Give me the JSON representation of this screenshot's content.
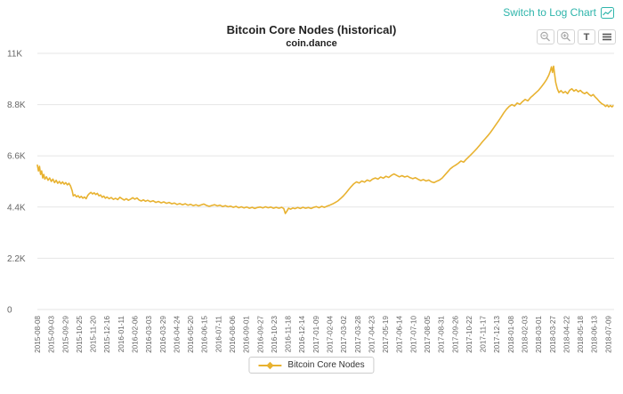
{
  "header": {
    "log_link_label": "Switch to Log Chart",
    "toolbar_buttons": [
      {
        "name": "zoom-out-icon",
        "title": "Zoom out"
      },
      {
        "name": "zoom-in-icon",
        "title": "Zoom in"
      },
      {
        "name": "text-annotation-icon",
        "title": "Text"
      },
      {
        "name": "menu-icon",
        "title": "Menu"
      }
    ]
  },
  "colors": {
    "accent": "#e8b230",
    "link": "#2eb5ab",
    "grid": "#e6e6e6",
    "axis_text": "#666666"
  },
  "chart_data": {
    "type": "line",
    "title": "Bitcoin Core Nodes (historical)",
    "subtitle": "coin.dance",
    "ylim": [
      0,
      11000
    ],
    "grid": "horizontal",
    "legend_position": "bottom",
    "y_ticks": [
      {
        "v": 0,
        "label": "0"
      },
      {
        "v": 2200,
        "label": "2.2K"
      },
      {
        "v": 4400,
        "label": "4.4K"
      },
      {
        "v": 6600,
        "label": "6.6K"
      },
      {
        "v": 8800,
        "label": "8.8K"
      },
      {
        "v": 11000,
        "label": "11K"
      }
    ],
    "x_range": [
      "2015-08-08",
      "2018-07-20"
    ],
    "x_ticks": [
      "2015-08-08",
      "2015-09-03",
      "2015-09-29",
      "2015-10-25",
      "2015-11-20",
      "2015-12-16",
      "2016-01-11",
      "2016-02-06",
      "2016-03-03",
      "2016-03-29",
      "2016-04-24",
      "2016-05-20",
      "2016-06-15",
      "2016-07-11",
      "2016-08-06",
      "2016-09-01",
      "2016-09-27",
      "2016-10-23",
      "2016-11-18",
      "2016-12-14",
      "2017-01-09",
      "2017-02-04",
      "2017-03-02",
      "2017-03-28",
      "2017-04-23",
      "2017-05-19",
      "2017-06-14",
      "2017-07-10",
      "2017-08-05",
      "2017-08-31",
      "2017-09-26",
      "2017-10-22",
      "2017-11-17",
      "2017-12-13",
      "2018-01-08",
      "2018-02-03",
      "2018-03-01",
      "2018-03-27",
      "2018-04-22",
      "2018-05-18",
      "2018-06-13",
      "2018-07-09"
    ],
    "series": [
      {
        "name": "Bitcoin Core Nodes",
        "color": "#e8b230",
        "points": [
          [
            "2015-08-08",
            6200
          ],
          [
            "2015-08-10",
            5950
          ],
          [
            "2015-08-12",
            6150
          ],
          [
            "2015-08-14",
            5800
          ],
          [
            "2015-08-16",
            5950
          ],
          [
            "2015-08-18",
            5650
          ],
          [
            "2015-08-20",
            5800
          ],
          [
            "2015-08-22",
            5600
          ],
          [
            "2015-08-25",
            5700
          ],
          [
            "2015-08-28",
            5550
          ],
          [
            "2015-08-31",
            5650
          ],
          [
            "2015-09-03",
            5500
          ],
          [
            "2015-09-06",
            5600
          ],
          [
            "2015-09-09",
            5450
          ],
          [
            "2015-09-12",
            5550
          ],
          [
            "2015-09-15",
            5420
          ],
          [
            "2015-09-18",
            5500
          ],
          [
            "2015-09-21",
            5400
          ],
          [
            "2015-09-24",
            5480
          ],
          [
            "2015-09-27",
            5380
          ],
          [
            "2015-09-30",
            5450
          ],
          [
            "2015-10-03",
            5350
          ],
          [
            "2015-10-06",
            5420
          ],
          [
            "2015-10-09",
            5300
          ],
          [
            "2015-10-12",
            5100
          ],
          [
            "2015-10-14",
            4880
          ],
          [
            "2015-10-17",
            4930
          ],
          [
            "2015-10-20",
            4840
          ],
          [
            "2015-10-23",
            4890
          ],
          [
            "2015-10-26",
            4800
          ],
          [
            "2015-10-29",
            4860
          ],
          [
            "2015-11-01",
            4780
          ],
          [
            "2015-11-04",
            4830
          ],
          [
            "2015-11-07",
            4760
          ],
          [
            "2015-11-10",
            4900
          ],
          [
            "2015-11-13",
            4980
          ],
          [
            "2015-11-16",
            5030
          ],
          [
            "2015-11-19",
            4960
          ],
          [
            "2015-11-22",
            5010
          ],
          [
            "2015-11-25",
            4940
          ],
          [
            "2015-11-28",
            4990
          ],
          [
            "2015-12-01",
            4880
          ],
          [
            "2015-12-04",
            4920
          ],
          [
            "2015-12-07",
            4820
          ],
          [
            "2015-12-10",
            4870
          ],
          [
            "2015-12-13",
            4780
          ],
          [
            "2015-12-16",
            4830
          ],
          [
            "2015-12-20",
            4760
          ],
          [
            "2015-12-24",
            4810
          ],
          [
            "2015-12-28",
            4730
          ],
          [
            "2016-01-01",
            4780
          ],
          [
            "2016-01-05",
            4720
          ],
          [
            "2016-01-09",
            4820
          ],
          [
            "2016-01-13",
            4760
          ],
          [
            "2016-01-17",
            4700
          ],
          [
            "2016-01-21",
            4760
          ],
          [
            "2016-01-25",
            4690
          ],
          [
            "2016-01-29",
            4740
          ],
          [
            "2016-02-02",
            4800
          ],
          [
            "2016-02-06",
            4740
          ],
          [
            "2016-02-10",
            4790
          ],
          [
            "2016-02-14",
            4700
          ],
          [
            "2016-02-18",
            4660
          ],
          [
            "2016-02-22",
            4710
          ],
          [
            "2016-02-26",
            4650
          ],
          [
            "2016-03-01",
            4690
          ],
          [
            "2016-03-06",
            4630
          ],
          [
            "2016-03-11",
            4670
          ],
          [
            "2016-03-16",
            4600
          ],
          [
            "2016-03-21",
            4640
          ],
          [
            "2016-03-26",
            4580
          ],
          [
            "2016-03-31",
            4620
          ],
          [
            "2016-04-05",
            4560
          ],
          [
            "2016-04-10",
            4600
          ],
          [
            "2016-04-15",
            4540
          ],
          [
            "2016-04-20",
            4570
          ],
          [
            "2016-04-25",
            4510
          ],
          [
            "2016-04-30",
            4550
          ],
          [
            "2016-05-05",
            4500
          ],
          [
            "2016-05-10",
            4540
          ],
          [
            "2016-05-15",
            4480
          ],
          [
            "2016-05-20",
            4520
          ],
          [
            "2016-05-25",
            4460
          ],
          [
            "2016-05-30",
            4500
          ],
          [
            "2016-06-04",
            4450
          ],
          [
            "2016-06-09",
            4490
          ],
          [
            "2016-06-14",
            4530
          ],
          [
            "2016-06-19",
            4470
          ],
          [
            "2016-06-24",
            4430
          ],
          [
            "2016-06-29",
            4470
          ],
          [
            "2016-07-04",
            4500
          ],
          [
            "2016-07-09",
            4450
          ],
          [
            "2016-07-14",
            4480
          ],
          [
            "2016-07-19",
            4420
          ],
          [
            "2016-07-24",
            4460
          ],
          [
            "2016-07-29",
            4410
          ],
          [
            "2016-08-03",
            4440
          ],
          [
            "2016-08-08",
            4390
          ],
          [
            "2016-08-13",
            4430
          ],
          [
            "2016-08-18",
            4370
          ],
          [
            "2016-08-23",
            4410
          ],
          [
            "2016-08-28",
            4360
          ],
          [
            "2016-09-02",
            4400
          ],
          [
            "2016-09-07",
            4350
          ],
          [
            "2016-09-12",
            4390
          ],
          [
            "2016-09-17",
            4340
          ],
          [
            "2016-09-22",
            4380
          ],
          [
            "2016-09-27",
            4400
          ],
          [
            "2016-10-02",
            4360
          ],
          [
            "2016-10-07",
            4410
          ],
          [
            "2016-10-12",
            4370
          ],
          [
            "2016-10-17",
            4400
          ],
          [
            "2016-10-22",
            4350
          ],
          [
            "2016-10-27",
            4390
          ],
          [
            "2016-11-01",
            4350
          ],
          [
            "2016-11-06",
            4390
          ],
          [
            "2016-11-10",
            4340
          ],
          [
            "2016-11-13",
            4120
          ],
          [
            "2016-11-16",
            4230
          ],
          [
            "2016-11-19",
            4350
          ],
          [
            "2016-11-23",
            4310
          ],
          [
            "2016-11-27",
            4360
          ],
          [
            "2016-12-01",
            4330
          ],
          [
            "2016-12-06",
            4380
          ],
          [
            "2016-12-11",
            4340
          ],
          [
            "2016-12-16",
            4390
          ],
          [
            "2016-12-21",
            4350
          ],
          [
            "2016-12-26",
            4380
          ],
          [
            "2016-12-31",
            4340
          ],
          [
            "2017-01-05",
            4390
          ],
          [
            "2017-01-10",
            4420
          ],
          [
            "2017-01-15",
            4370
          ],
          [
            "2017-01-20",
            4430
          ],
          [
            "2017-01-25",
            4390
          ],
          [
            "2017-01-30",
            4440
          ],
          [
            "2017-02-04",
            4480
          ],
          [
            "2017-02-09",
            4530
          ],
          [
            "2017-02-14",
            4590
          ],
          [
            "2017-02-19",
            4660
          ],
          [
            "2017-02-24",
            4760
          ],
          [
            "2017-03-01",
            4870
          ],
          [
            "2017-03-06",
            5000
          ],
          [
            "2017-03-11",
            5140
          ],
          [
            "2017-03-16",
            5280
          ],
          [
            "2017-03-21",
            5400
          ],
          [
            "2017-03-26",
            5480
          ],
          [
            "2017-03-31",
            5430
          ],
          [
            "2017-04-05",
            5520
          ],
          [
            "2017-04-10",
            5470
          ],
          [
            "2017-04-15",
            5560
          ],
          [
            "2017-04-20",
            5510
          ],
          [
            "2017-04-25",
            5600
          ],
          [
            "2017-04-30",
            5650
          ],
          [
            "2017-05-05",
            5600
          ],
          [
            "2017-05-10",
            5690
          ],
          [
            "2017-05-15",
            5640
          ],
          [
            "2017-05-20",
            5720
          ],
          [
            "2017-05-25",
            5670
          ],
          [
            "2017-05-30",
            5760
          ],
          [
            "2017-06-04",
            5820
          ],
          [
            "2017-06-09",
            5760
          ],
          [
            "2017-06-14",
            5700
          ],
          [
            "2017-06-19",
            5750
          ],
          [
            "2017-06-24",
            5690
          ],
          [
            "2017-06-29",
            5730
          ],
          [
            "2017-07-04",
            5660
          ],
          [
            "2017-07-09",
            5620
          ],
          [
            "2017-07-14",
            5660
          ],
          [
            "2017-07-19",
            5590
          ],
          [
            "2017-07-24",
            5540
          ],
          [
            "2017-07-29",
            5580
          ],
          [
            "2017-08-03",
            5520
          ],
          [
            "2017-08-08",
            5560
          ],
          [
            "2017-08-13",
            5480
          ],
          [
            "2017-08-18",
            5450
          ],
          [
            "2017-08-23",
            5510
          ],
          [
            "2017-08-28",
            5560
          ],
          [
            "2017-09-02",
            5650
          ],
          [
            "2017-09-07",
            5780
          ],
          [
            "2017-09-12",
            5910
          ],
          [
            "2017-09-17",
            6040
          ],
          [
            "2017-09-22",
            6130
          ],
          [
            "2017-09-27",
            6200
          ],
          [
            "2017-10-02",
            6280
          ],
          [
            "2017-10-07",
            6380
          ],
          [
            "2017-10-12",
            6330
          ],
          [
            "2017-10-17",
            6450
          ],
          [
            "2017-10-22",
            6560
          ],
          [
            "2017-10-27",
            6680
          ],
          [
            "2017-11-01",
            6800
          ],
          [
            "2017-11-06",
            6920
          ],
          [
            "2017-11-11",
            7060
          ],
          [
            "2017-11-16",
            7200
          ],
          [
            "2017-11-21",
            7330
          ],
          [
            "2017-11-26",
            7460
          ],
          [
            "2017-12-01",
            7600
          ],
          [
            "2017-12-06",
            7760
          ],
          [
            "2017-12-11",
            7930
          ],
          [
            "2017-12-16",
            8090
          ],
          [
            "2017-12-21",
            8260
          ],
          [
            "2017-12-26",
            8450
          ],
          [
            "2017-12-31",
            8600
          ],
          [
            "2018-01-05",
            8720
          ],
          [
            "2018-01-10",
            8800
          ],
          [
            "2018-01-15",
            8740
          ],
          [
            "2018-01-20",
            8870
          ],
          [
            "2018-01-25",
            8810
          ],
          [
            "2018-01-30",
            8930
          ],
          [
            "2018-02-04",
            9020
          ],
          [
            "2018-02-09",
            8960
          ],
          [
            "2018-02-14",
            9100
          ],
          [
            "2018-02-19",
            9200
          ],
          [
            "2018-02-24",
            9310
          ],
          [
            "2018-03-01",
            9420
          ],
          [
            "2018-03-06",
            9560
          ],
          [
            "2018-03-11",
            9710
          ],
          [
            "2018-03-16",
            9880
          ],
          [
            "2018-03-20",
            10060
          ],
          [
            "2018-03-23",
            10250
          ],
          [
            "2018-03-25",
            10420
          ],
          [
            "2018-03-27",
            10180
          ],
          [
            "2018-03-29",
            10450
          ],
          [
            "2018-03-31",
            10100
          ],
          [
            "2018-04-02",
            9750
          ],
          [
            "2018-04-05",
            9480
          ],
          [
            "2018-04-08",
            9320
          ],
          [
            "2018-04-12",
            9400
          ],
          [
            "2018-04-16",
            9300
          ],
          [
            "2018-04-20",
            9360
          ],
          [
            "2018-04-24",
            9270
          ],
          [
            "2018-04-28",
            9420
          ],
          [
            "2018-05-02",
            9480
          ],
          [
            "2018-05-06",
            9380
          ],
          [
            "2018-05-10",
            9440
          ],
          [
            "2018-05-14",
            9350
          ],
          [
            "2018-05-18",
            9410
          ],
          [
            "2018-05-22",
            9320
          ],
          [
            "2018-05-26",
            9270
          ],
          [
            "2018-05-30",
            9330
          ],
          [
            "2018-06-03",
            9240
          ],
          [
            "2018-06-07",
            9170
          ],
          [
            "2018-06-11",
            9230
          ],
          [
            "2018-06-15",
            9120
          ],
          [
            "2018-06-19",
            9030
          ],
          [
            "2018-06-23",
            8920
          ],
          [
            "2018-06-27",
            8840
          ],
          [
            "2018-07-01",
            8790
          ],
          [
            "2018-07-04",
            8720
          ],
          [
            "2018-07-07",
            8780
          ],
          [
            "2018-07-10",
            8700
          ],
          [
            "2018-07-13",
            8760
          ],
          [
            "2018-07-16",
            8700
          ],
          [
            "2018-07-18",
            8750
          ]
        ]
      }
    ]
  },
  "legend": {
    "label": "Bitcoin Core Nodes"
  }
}
